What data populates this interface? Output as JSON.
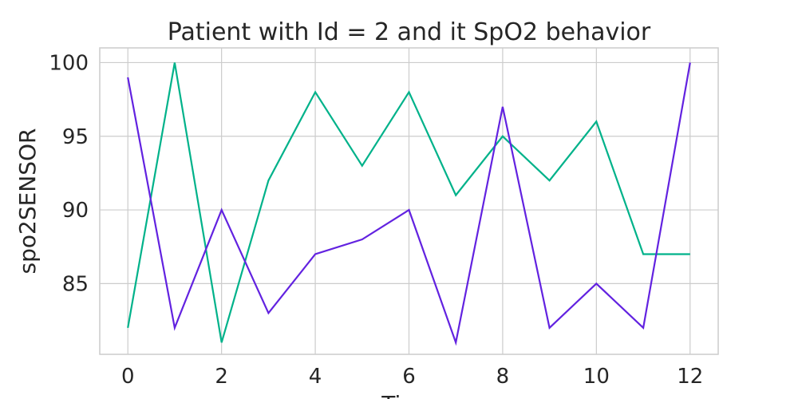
{
  "chart_data": {
    "type": "line",
    "title": "Patient with Id = 2 and it SpO2 behavior",
    "xlabel": "Time",
    "ylabel": "spo2SENSOR",
    "xlim": [
      -0.6,
      12.6
    ],
    "ylim": [
      80.2,
      101.0
    ],
    "x_ticks": [
      0,
      2,
      4,
      6,
      8,
      10,
      12
    ],
    "y_ticks": [
      85,
      90,
      95,
      100
    ],
    "grid": true,
    "x": [
      0,
      1,
      2,
      3,
      4,
      5,
      6,
      7,
      8,
      9,
      10,
      11,
      12
    ],
    "series": [
      {
        "color": "#00b28a",
        "values": [
          82,
          100,
          81,
          92,
          98,
          93,
          98,
          91,
          95,
          92,
          96,
          87,
          87
        ]
      },
      {
        "color": "#6222e0",
        "values": [
          99,
          82,
          90,
          83,
          87,
          88,
          90,
          81,
          97,
          82,
          85,
          82,
          100
        ]
      }
    ]
  }
}
